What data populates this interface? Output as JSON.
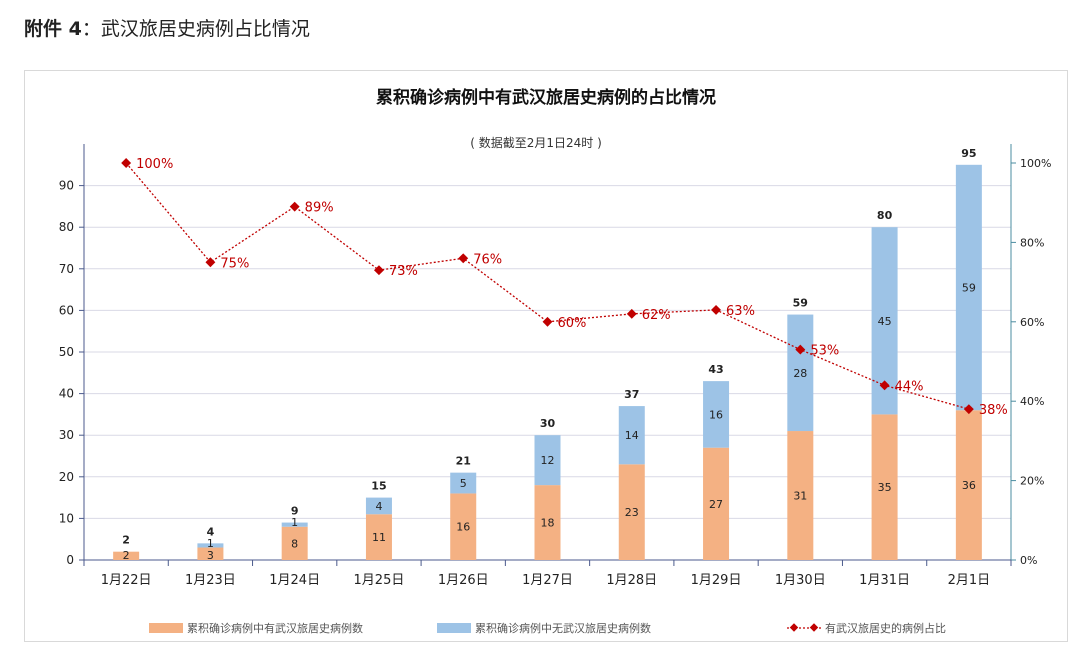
{
  "page_header": {
    "prefix": "附件 4",
    "colon": "：",
    "title": "武汉旅居史病例占比情况"
  },
  "chart_data": {
    "type": "bar",
    "title": "累积确诊病例中有武汉旅居史病例的占比情况",
    "subtitle": "( 数据截至2月1日24时 )",
    "categories": [
      "1月22日",
      "1月23日",
      "1月24日",
      "1月25日",
      "1月26日",
      "1月27日",
      "1月28日",
      "1月29日",
      "1月30日",
      "1月31日",
      "2月1日"
    ],
    "series": [
      {
        "name": "累积确诊病例中有武汉旅居史病例数",
        "type": "bar",
        "color": "#f4b183",
        "values": [
          2,
          3,
          8,
          11,
          16,
          18,
          23,
          27,
          31,
          35,
          36
        ]
      },
      {
        "name": "累积确诊病例中无武汉旅居史病例数",
        "type": "bar",
        "color": "#9dc3e6",
        "values": [
          0,
          1,
          1,
          4,
          5,
          12,
          14,
          16,
          28,
          45,
          59
        ]
      },
      {
        "name": "有武汉旅居史的病例占比",
        "type": "line",
        "axis": "right",
        "color": "#c00000",
        "values": [
          100,
          75,
          89,
          73,
          76,
          60,
          62,
          63,
          53,
          44,
          38
        ]
      }
    ],
    "totals": [
      2,
      4,
      9,
      15,
      21,
      30,
      37,
      43,
      59,
      80,
      95
    ],
    "left_axis": {
      "ylim": [
        0,
        100
      ],
      "ticks": [
        "0",
        "10",
        "20",
        "30",
        "40",
        "50",
        "60",
        "70",
        "80",
        "90"
      ]
    },
    "right_axis": {
      "ylim": [
        0,
        105
      ],
      "ticks": [
        "0%",
        "20%",
        "40%",
        "60%",
        "80%",
        "100%"
      ]
    },
    "legend_position": "bottom",
    "grid": true
  }
}
